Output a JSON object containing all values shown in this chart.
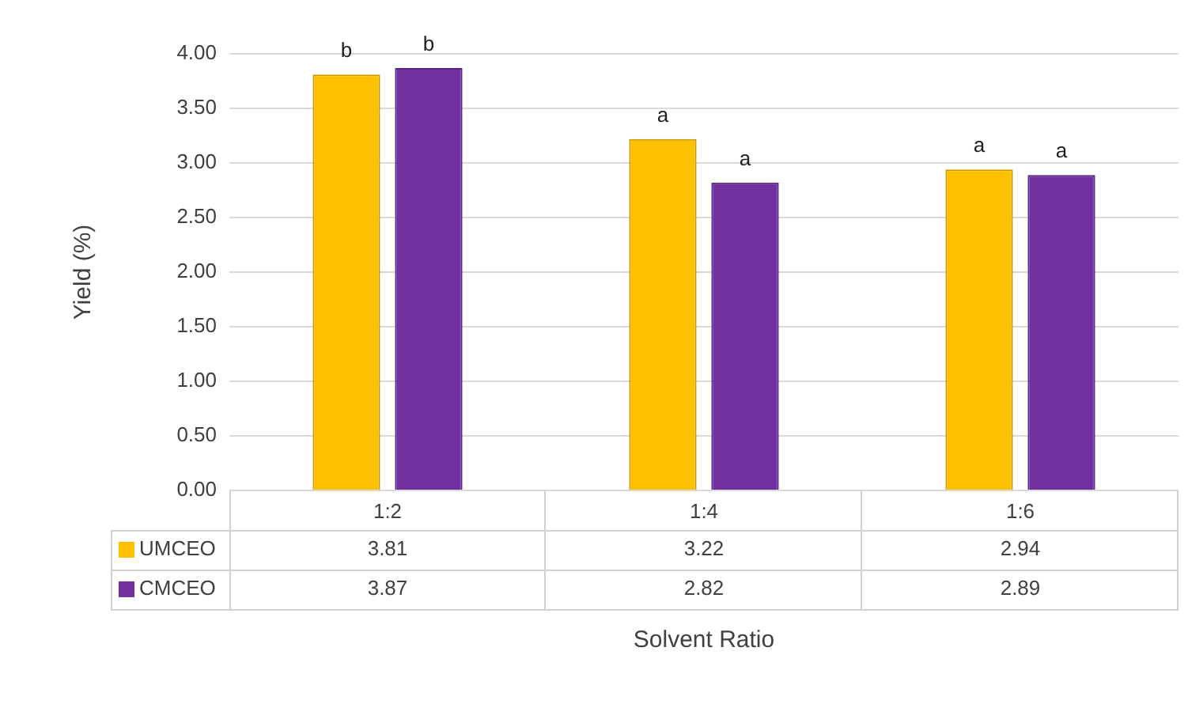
{
  "chart_data": {
    "type": "bar",
    "xlabel": "Solvent Ratio",
    "ylabel": "Yield (%)",
    "categories": [
      "1:2",
      "1:4",
      "1:6"
    ],
    "series": [
      {
        "name": "UMCEO",
        "color": "#ffc000",
        "values": [
          3.81,
          3.22,
          2.94
        ]
      },
      {
        "name": "CMCEO",
        "color": "#7030a0",
        "values": [
          3.87,
          2.82,
          2.89
        ]
      }
    ],
    "ylim": [
      0,
      4
    ],
    "yticks": [
      {
        "value": 0,
        "label": "0.00"
      },
      {
        "value": 0.5,
        "label": "0.50"
      },
      {
        "value": 1,
        "label": "1.00"
      },
      {
        "value": 1.5,
        "label": "1.50"
      },
      {
        "value": 2,
        "label": "2.00"
      },
      {
        "value": 2.5,
        "label": "2.50"
      },
      {
        "value": 3,
        "label": "3.00"
      },
      {
        "value": 3.5,
        "label": "3.50"
      },
      {
        "value": 4,
        "label": "4.00"
      }
    ],
    "grid": "y",
    "legend": "bottom",
    "data_labels": true,
    "annotations": [
      "b",
      "b",
      "a",
      "a",
      "a",
      "a"
    ]
  }
}
